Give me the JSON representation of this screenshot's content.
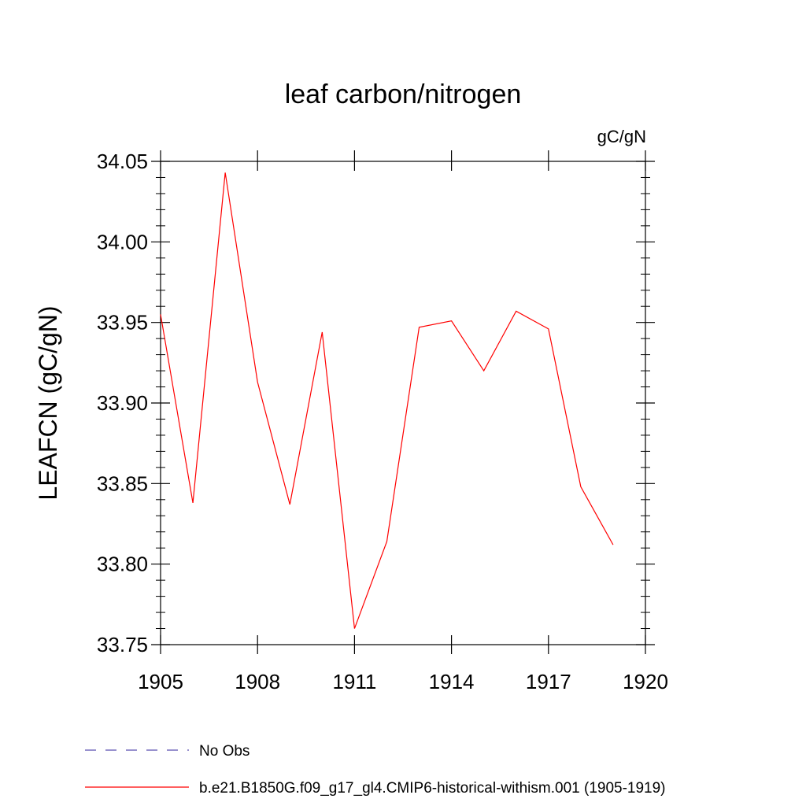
{
  "chart_data": {
    "type": "line",
    "title": "leaf carbon/nitrogen",
    "units_label": "gC/gN",
    "ylabel": "LEAFCN  (gC/gN)",
    "xlabel": "",
    "xlim": [
      1905,
      1920
    ],
    "ylim": [
      33.75,
      34.05
    ],
    "xticks": [
      1905,
      1908,
      1911,
      1914,
      1917,
      1920
    ],
    "xtick_labels": [
      "1905",
      "1908",
      "1911",
      "1914",
      "1917",
      "1920"
    ],
    "yticks": [
      33.75,
      33.8,
      33.85,
      33.9,
      33.95,
      34.0,
      34.05
    ],
    "ytick_labels": [
      "33.75",
      "33.80",
      "33.85",
      "33.90",
      "33.95",
      "34.00",
      "34.05"
    ],
    "grid": false,
    "legend_position": "bottom",
    "series": [
      {
        "name": "No Obs",
        "style": "dashed",
        "color": "#5b4fb0",
        "x": [],
        "values": []
      },
      {
        "name": "b.e21.B1850G.f09_g17_gl4.CMIP6-historical-withism.001 (1905-1919)",
        "style": "solid",
        "color": "#ff0000",
        "x": [
          1905,
          1906,
          1907,
          1908,
          1909,
          1910,
          1911,
          1912,
          1913,
          1914,
          1915,
          1916,
          1917,
          1918,
          1919
        ],
        "values": [
          33.955,
          33.838,
          34.043,
          33.913,
          33.837,
          33.944,
          33.76,
          33.814,
          33.947,
          33.951,
          33.92,
          33.957,
          33.946,
          33.848,
          33.812
        ]
      }
    ]
  }
}
